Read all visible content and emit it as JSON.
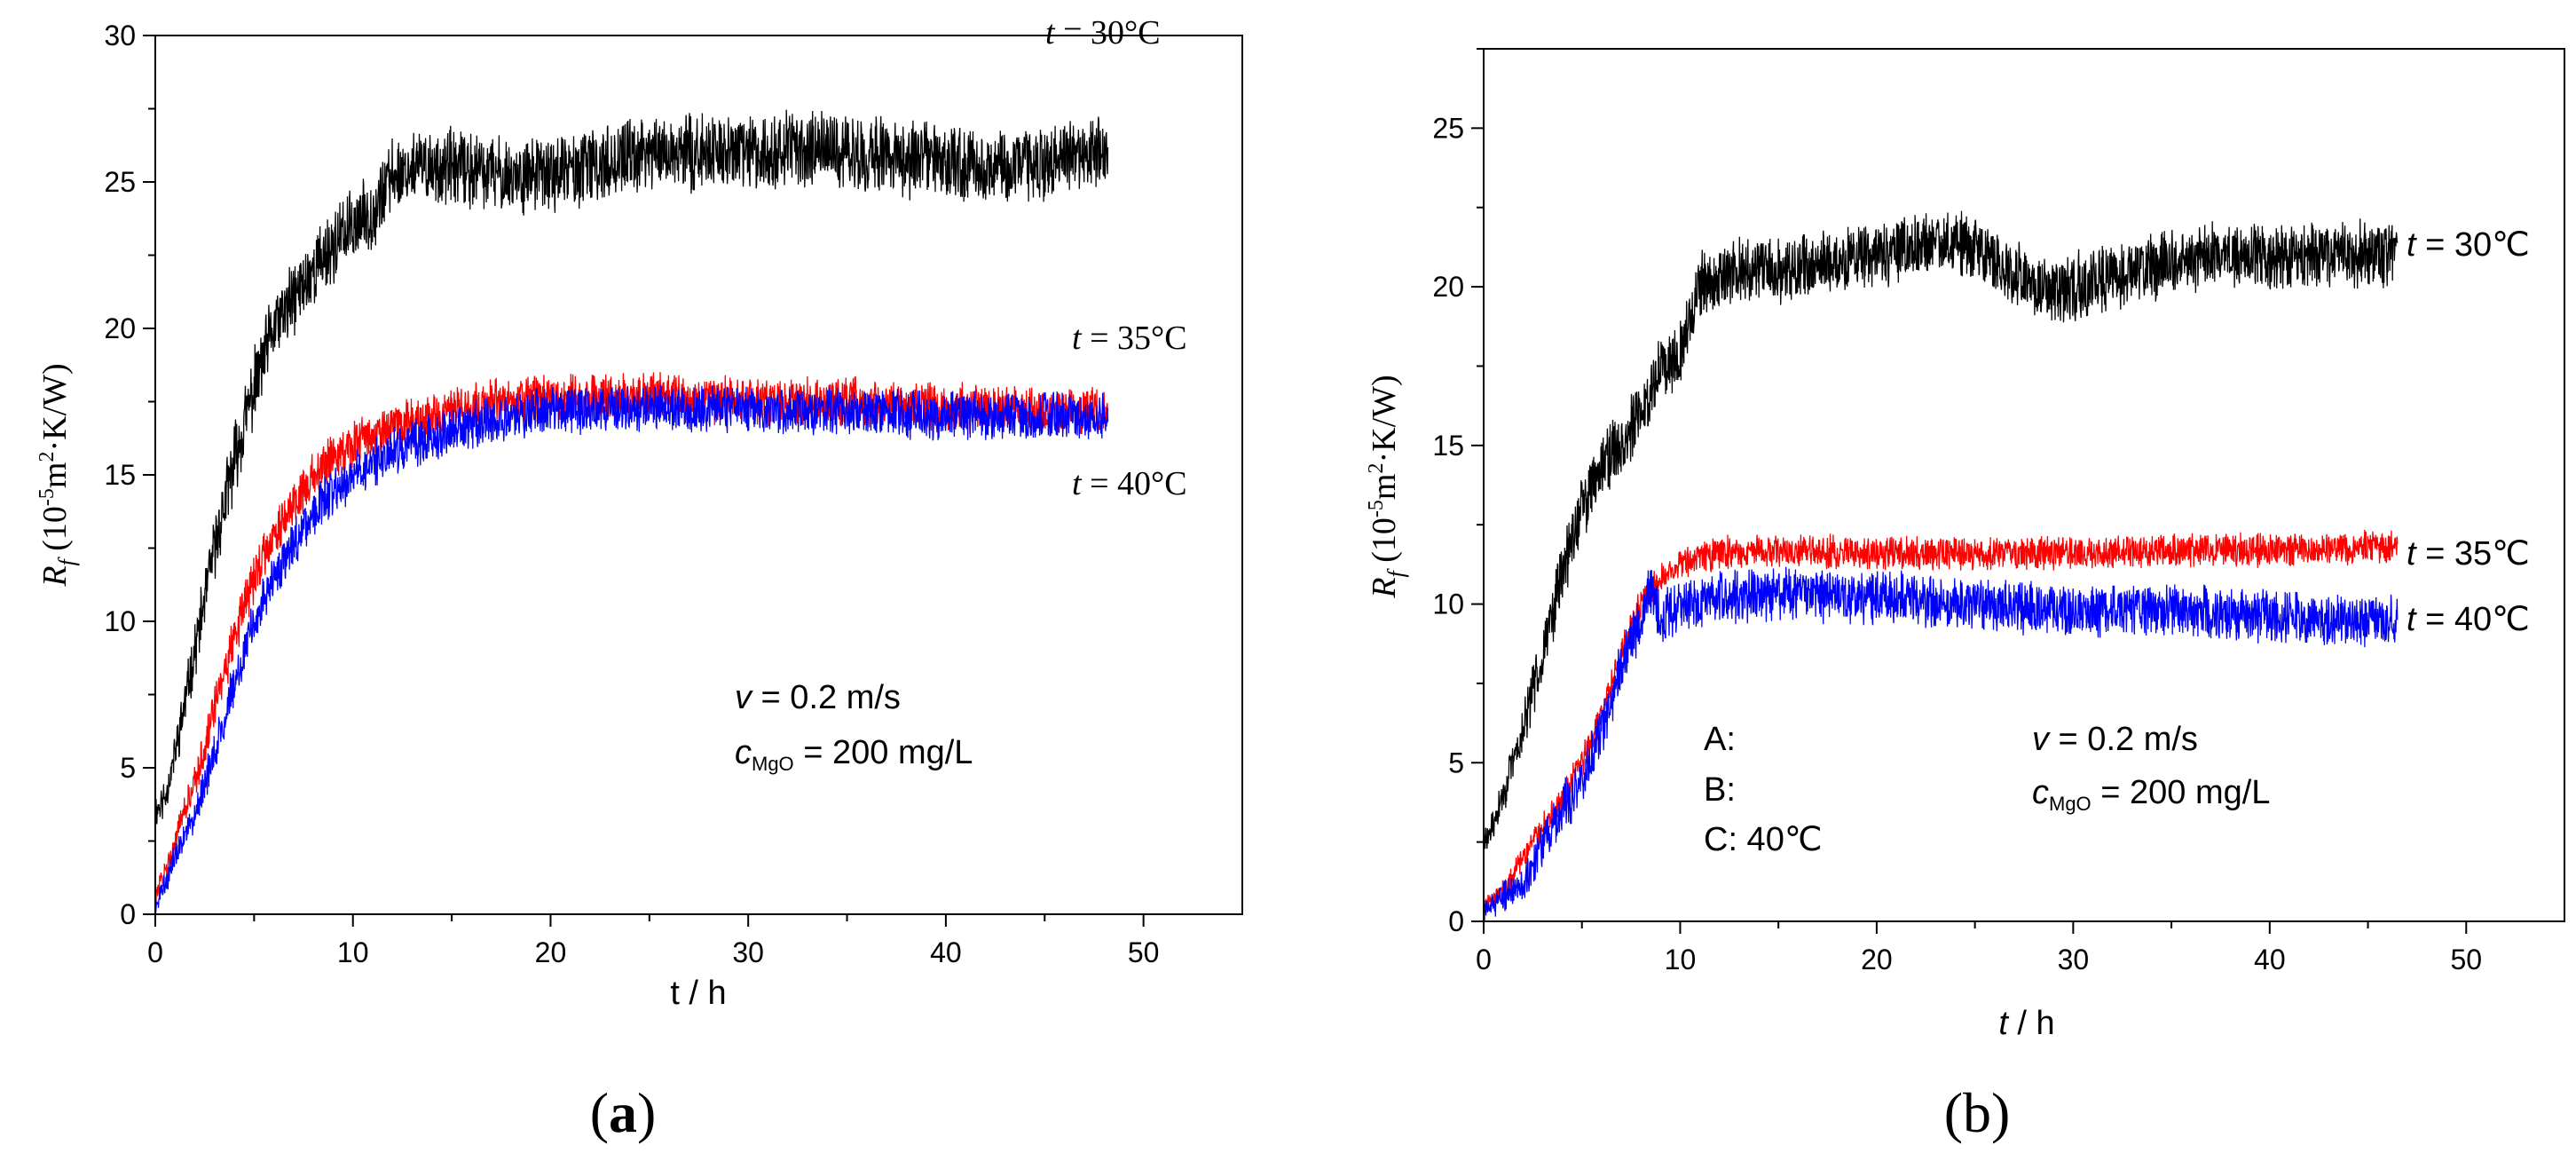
{
  "chart_data": [
    {
      "type": "line",
      "panel_label": "(a)",
      "xlabel": "t / h",
      "ylabel": {
        "main": "R",
        "sub": "f",
        "units_prefix": " (10",
        "exp1": "-5",
        "units_mid": "m",
        "exp2": "2",
        "units_suffix": "·K/W)"
      },
      "xlim": [
        0,
        55
      ],
      "ylim": [
        0,
        30
      ],
      "xticks": [
        0,
        10,
        20,
        30,
        40,
        50
      ],
      "yticks": [
        0,
        5,
        10,
        15,
        20,
        25,
        30
      ],
      "series": [
        {
          "name": "t = 30°C",
          "label_var": "t",
          "label_rest": " = 30°C",
          "color": "#000000",
          "x_end": 48.2,
          "x": [
            0.0,
            0.5,
            1,
            2,
            3,
            4,
            5,
            6,
            7,
            8,
            9,
            10,
            11,
            12,
            13,
            15,
            18,
            20,
            22,
            25,
            28,
            30,
            33,
            35,
            38,
            40,
            42,
            45,
            48
          ],
          "y": [
            3.5,
            4.0,
            5.5,
            9.0,
            12.5,
            15.5,
            18.0,
            20.0,
            21.0,
            22.0,
            22.8,
            23.5,
            24.0,
            25.2,
            25.5,
            25.5,
            25.2,
            25.3,
            25.5,
            26.0,
            26.0,
            26.0,
            26.2,
            26.0,
            25.8,
            25.7,
            25.5,
            25.7,
            26.0
          ],
          "noise": 1.1
        },
        {
          "name": "t = 35°C",
          "label_var": "t",
          "label_rest": " = 35°C",
          "color": "#ff0000",
          "x_end": 48.2,
          "x": [
            0.0,
            0.5,
            1,
            2,
            3,
            4,
            5,
            6,
            7,
            8,
            9,
            10,
            12,
            14,
            16,
            18,
            20,
            25,
            30,
            35,
            40,
            45,
            48
          ],
          "y": [
            0.5,
            1.5,
            2.5,
            4.5,
            7.0,
            9.5,
            11.5,
            13.0,
            14.0,
            15.0,
            15.7,
            16.0,
            16.6,
            17.0,
            17.3,
            17.5,
            17.6,
            17.7,
            17.5,
            17.5,
            17.3,
            17.2,
            17.2
          ],
          "noise": 0.7
        },
        {
          "name": "t = 40°C",
          "label_var": "t",
          "label_rest": " = 40°C",
          "color": "#0000ff",
          "x_end": 48.2,
          "x": [
            0.0,
            0.5,
            1,
            2,
            3,
            4,
            5,
            6,
            7,
            8,
            9,
            10,
            12,
            14,
            16,
            18,
            20,
            25,
            30,
            35,
            40,
            45,
            48
          ],
          "y": [
            0.2,
            1.0,
            2.0,
            3.5,
            5.5,
            8.0,
            10.0,
            11.5,
            12.7,
            13.7,
            14.4,
            15.0,
            15.8,
            16.3,
            16.7,
            17.0,
            17.2,
            17.3,
            17.2,
            17.2,
            17.0,
            17.0,
            17.0
          ],
          "noise": 0.7
        }
      ],
      "annotations": [
        {
          "var": "v",
          "rest": " = 0.2 m/s"
        },
        {
          "var": "c",
          "sub": "MgO",
          "rest": " = 200 mg/L"
        }
      ]
    },
    {
      "type": "line",
      "panel_label": "(b)",
      "xlabel": "t / h",
      "ylabel": {
        "main": "R",
        "sub": "f",
        "units_prefix": " (10",
        "exp1": "-5",
        "units_mid": "m",
        "exp2": "2",
        "units_suffix": "·K/W)"
      },
      "xlim": [
        0,
        55
      ],
      "ylim": [
        0,
        27.5
      ],
      "xticks": [
        0,
        10,
        20,
        30,
        40,
        50
      ],
      "yticks": [
        0,
        5,
        10,
        15,
        20,
        25
      ],
      "series": [
        {
          "name": "t = 30℃",
          "label_var": "t",
          "label_rest": " = 30℃",
          "color": "#000000",
          "x_end": 46.5,
          "x": [
            0.0,
            0.5,
            1,
            2,
            3,
            4,
            5,
            6,
            7,
            8,
            9,
            10,
            10.5,
            11,
            12,
            13,
            15,
            18,
            20,
            22,
            24,
            26,
            28,
            30,
            33,
            35,
            38,
            40,
            43,
            46
          ],
          "y": [
            2.5,
            3.0,
            4.0,
            6.0,
            8.5,
            11.0,
            13.0,
            14.5,
            15.0,
            16.0,
            17.5,
            18.0,
            19.0,
            20.0,
            20.2,
            20.5,
            20.5,
            20.8,
            21.0,
            21.2,
            21.5,
            20.8,
            20.0,
            20.0,
            20.5,
            20.8,
            21.0,
            21.0,
            21.0,
            21.0
          ],
          "noise": 0.9
        },
        {
          "name": "t = 35℃",
          "label_var": "t",
          "label_rest": " = 35℃",
          "color": "#ff0000",
          "x_end": 46.5,
          "x": [
            0.0,
            1,
            2,
            3,
            4,
            5,
            6,
            7,
            8,
            9,
            10,
            12,
            15,
            20,
            25,
            30,
            35,
            40,
            46
          ],
          "y": [
            0.5,
            1.0,
            2.0,
            3.0,
            3.8,
            5.0,
            6.5,
            8.5,
            10.0,
            10.8,
            11.3,
            11.6,
            11.7,
            11.6,
            11.6,
            11.6,
            11.7,
            11.7,
            11.8
          ],
          "noise": 0.45
        },
        {
          "name": "t = 40℃",
          "label_var": "t",
          "label_rest": " = 40℃",
          "color": "#0000ff",
          "x_end": 46.5,
          "x": [
            0.0,
            1,
            2,
            2.5,
            3,
            4,
            5,
            6,
            7,
            8,
            8.5,
            9,
            10,
            12,
            15,
            20,
            25,
            30,
            35,
            40,
            46
          ],
          "y": [
            0.3,
            0.8,
            1.2,
            1.8,
            2.5,
            3.5,
            4.5,
            6.0,
            8.0,
            9.5,
            10.5,
            9.5,
            10.0,
            10.2,
            10.3,
            10.2,
            10.0,
            9.8,
            9.8,
            9.6,
            9.5
          ],
          "noise": 0.7
        }
      ],
      "annotations": [
        {
          "var": "v",
          "rest": " = 0.2 m/s"
        },
        {
          "var": "c",
          "sub": "MgO",
          "rest": " = 200 mg/L"
        }
      ],
      "labels_abc": [
        "A:",
        "B:",
        "C: 40℃"
      ]
    }
  ]
}
